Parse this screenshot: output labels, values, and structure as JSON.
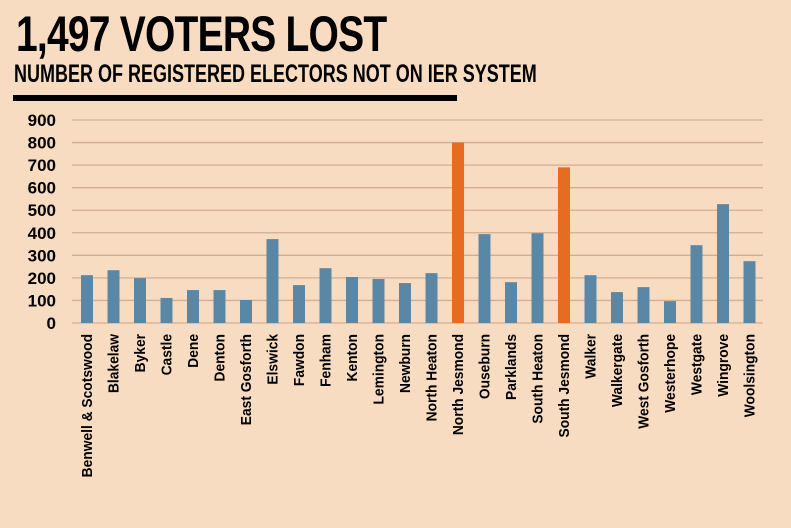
{
  "header": {
    "title": "1,497 VOTERS LOST",
    "subtitle": "NUMBER OF REGISTERED ELECTORS NOT ON IER SYSTEM"
  },
  "colors": {
    "background": "#F8DCC2",
    "bar_default": "#5A87A5",
    "bar_highlight": "#E66C22",
    "gridline": "#D1AE92"
  },
  "chart_data": {
    "type": "bar",
    "title": "1,497 VOTERS LOST",
    "subtitle": "NUMBER OF REGISTERED ELECTORS NOT ON IER SYSTEM",
    "xlabel": "",
    "ylabel": "",
    "ylim": [
      0,
      900
    ],
    "yticks": [
      "0",
      "100",
      "200",
      "300",
      "400",
      "500",
      "600",
      "700",
      "800",
      "900"
    ],
    "grid": true,
    "categories": [
      "Benwell & Scotswood",
      "Blakelaw",
      "Byker",
      "Castle",
      "Dene",
      "Denton",
      "East Gosforth",
      "Elswick",
      "Fawdon",
      "Fenham",
      "Kenton",
      "Lemington",
      "Newburn",
      "North Heaton",
      "North Jesmond",
      "Ouseburn",
      "Parklands",
      "South Heaton",
      "South Jesmond",
      "Walker",
      "Walkergate",
      "West Gosforth",
      "Westerhope",
      "Westgate",
      "Wingrove",
      "Woolsington"
    ],
    "values": [
      212,
      234,
      199,
      111,
      146,
      146,
      102,
      372,
      168,
      243,
      204,
      195,
      177,
      221,
      800,
      394,
      181,
      398,
      690,
      212,
      137,
      159,
      97,
      345,
      527,
      274
    ],
    "highlighted": [
      "North Jesmond",
      "South Jesmond"
    ]
  }
}
